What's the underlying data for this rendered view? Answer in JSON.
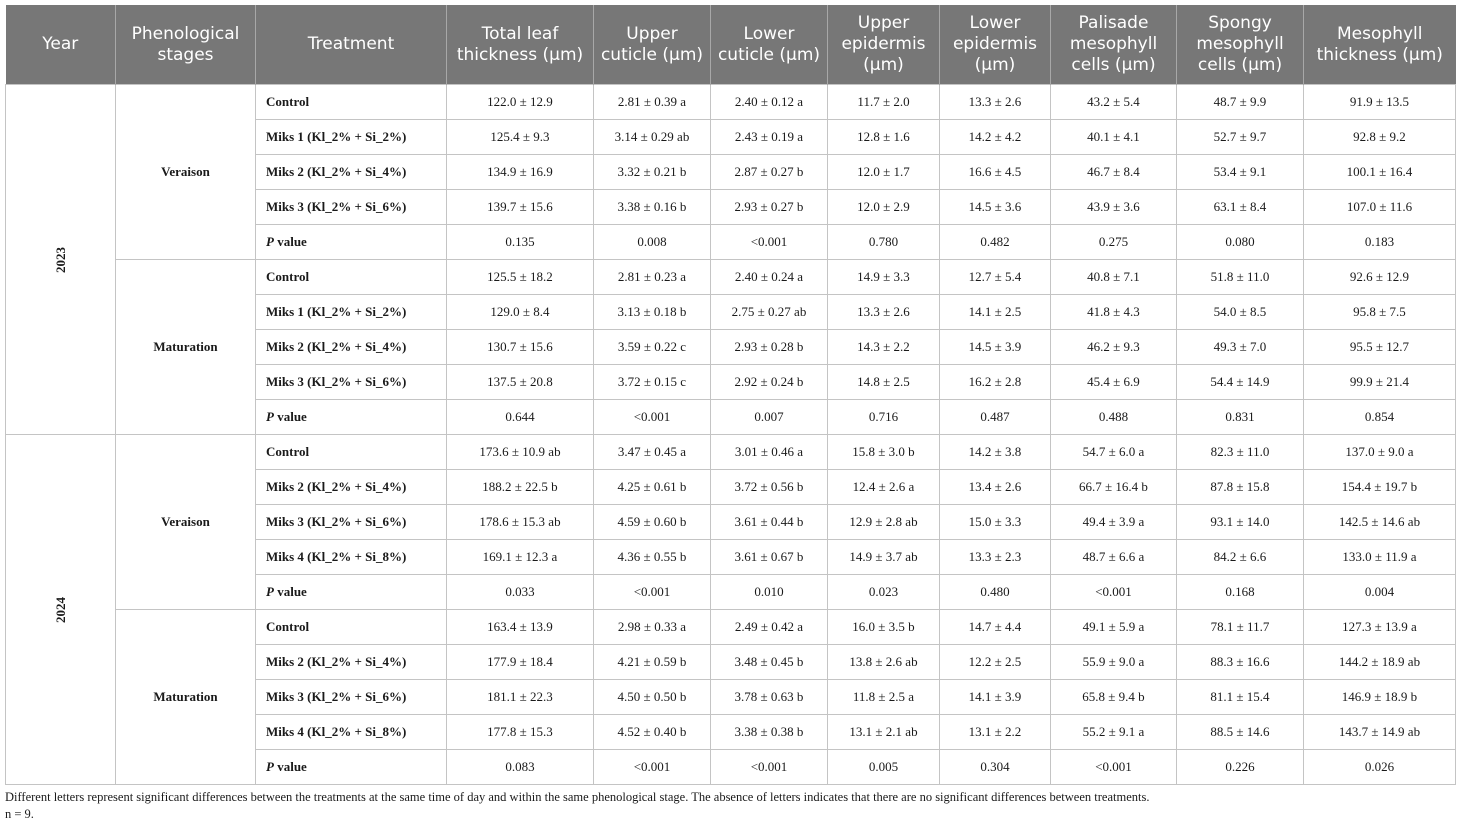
{
  "table": {
    "headers": {
      "year": "Year",
      "stage": "Phenological stages",
      "treatment": "Treatment",
      "total": "Total leaf thickness (µm)",
      "upper_cuticle": "Upper cuticle (µm)",
      "lower_cuticle": "Lower cuticle (µm)",
      "upper_epidermis": "Upper epidermis (µm)",
      "lower_epidermis": "Lower epidermis (µm)",
      "palisade": "Palisade mesophyll cells (µm)",
      "spongy": "Spongy mesophyll cells (µm)",
      "mesophyll": "Mesophyll thickness (µm)"
    },
    "years": [
      {
        "year": "2023",
        "stages": [
          {
            "stage": "Veraison",
            "rows": [
              {
                "treatment": "Control",
                "values": [
                  "122.0 ± 12.9",
                  "2.81 ± 0.39 a",
                  "2.40 ± 0.12 a",
                  "11.7 ± 2.0",
                  "13.3 ± 2.6",
                  "43.2 ± 5.4",
                  "48.7 ± 9.9",
                  "91.9 ± 13.5"
                ]
              },
              {
                "treatment": "Miks 1 (Kl_2% + Si_2%)",
                "values": [
                  "125.4 ± 9.3",
                  "3.14 ± 0.29 ab",
                  "2.43 ± 0.19 a",
                  "12.8 ± 1.6",
                  "14.2 ± 4.2",
                  "40.1 ± 4.1",
                  "52.7 ± 9.7",
                  "92.8 ± 9.2"
                ]
              },
              {
                "treatment": "Miks 2 (Kl_2% + Si_4%)",
                "values": [
                  "134.9 ± 16.9",
                  "3.32 ± 0.21 b",
                  "2.87 ± 0.27 b",
                  "12.0 ± 1.7",
                  "16.6 ± 4.5",
                  "46.7 ± 8.4",
                  "53.4 ± 9.1",
                  "100.1 ± 16.4"
                ]
              },
              {
                "treatment": "Miks 3 (Kl_2% + Si_6%)",
                "values": [
                  "139.7 ± 15.6",
                  "3.38 ± 0.16 b",
                  "2.93 ± 0.27 b",
                  "12.0 ± 2.9",
                  "14.5 ± 3.6",
                  "43.9 ± 3.6",
                  "63.1 ± 8.4",
                  "107.0 ± 11.6"
                ]
              },
              {
                "treatment_p": "P",
                "treatment_rest": " value",
                "values": [
                  "0.135",
                  "0.008",
                  "<0.001",
                  "0.780",
                  "0.482",
                  "0.275",
                  "0.080",
                  "0.183"
                ]
              }
            ]
          },
          {
            "stage": "Maturation",
            "rows": [
              {
                "treatment": "Control",
                "values": [
                  "125.5 ± 18.2",
                  "2.81 ± 0.23 a",
                  "2.40 ± 0.24 a",
                  "14.9 ± 3.3",
                  "12.7 ± 5.4",
                  "40.8 ± 7.1",
                  "51.8 ± 11.0",
                  "92.6 ± 12.9"
                ]
              },
              {
                "treatment": "Miks 1 (Kl_2% + Si_2%)",
                "values": [
                  "129.0 ± 8.4",
                  "3.13 ± 0.18 b",
                  "2.75 ± 0.27 ab",
                  "13.3 ± 2.6",
                  "14.1 ± 2.5",
                  "41.8 ± 4.3",
                  "54.0 ± 8.5",
                  "95.8 ± 7.5"
                ]
              },
              {
                "treatment": "Miks 2 (Kl_2% + Si_4%)",
                "values": [
                  "130.7 ± 15.6",
                  "3.59 ± 0.22 c",
                  "2.93 ± 0.28 b",
                  "14.3 ± 2.2",
                  "14.5 ± 3.9",
                  "46.2 ± 9.3",
                  "49.3 ± 7.0",
                  "95.5 ± 12.7"
                ]
              },
              {
                "treatment": "Miks 3 (Kl_2% + Si_6%)",
                "values": [
                  "137.5 ± 20.8",
                  "3.72 ± 0.15 c",
                  "2.92 ± 0.24 b",
                  "14.8 ± 2.5",
                  "16.2 ± 2.8",
                  "45.4 ± 6.9",
                  "54.4 ± 14.9",
                  "99.9 ± 21.4"
                ]
              },
              {
                "treatment_p": "P",
                "treatment_rest": " value",
                "values": [
                  "0.644",
                  "<0.001",
                  "0.007",
                  "0.716",
                  "0.487",
                  "0.488",
                  "0.831",
                  "0.854"
                ]
              }
            ]
          }
        ]
      },
      {
        "year": "2024",
        "stages": [
          {
            "stage": "Veraison",
            "rows": [
              {
                "treatment": "Control",
                "values": [
                  "173.6 ± 10.9 ab",
                  "3.47 ± 0.45 a",
                  "3.01 ± 0.46 a",
                  "15.8 ± 3.0 b",
                  "14.2 ± 3.8",
                  "54.7 ± 6.0 a",
                  "82.3 ± 11.0",
                  "137.0 ± 9.0 a"
                ]
              },
              {
                "treatment": "Miks 2 (Kl_2% + Si_4%)",
                "values": [
                  "188.2 ± 22.5 b",
                  "4.25 ± 0.61 b",
                  "3.72 ± 0.56 b",
                  "12.4 ± 2.6 a",
                  "13.4 ± 2.6",
                  "66.7 ± 16.4 b",
                  "87.8 ± 15.8",
                  "154.4 ± 19.7 b"
                ]
              },
              {
                "treatment": "Miks 3 (Kl_2% + Si_6%)",
                "values": [
                  "178.6 ± 15.3 ab",
                  "4.59 ± 0.60 b",
                  "3.61 ± 0.44 b",
                  "12.9 ± 2.8 ab",
                  "15.0 ± 3.3",
                  "49.4 ± 3.9 a",
                  "93.1 ± 14.0",
                  "142.5 ± 14.6 ab"
                ]
              },
              {
                "treatment": "Miks 4 (Kl_2% + Si_8%)",
                "values": [
                  "169.1 ± 12.3 a",
                  "4.36 ± 0.55 b",
                  "3.61 ± 0.67 b",
                  "14.9 ± 3.7 ab",
                  "13.3 ± 2.3",
                  "48.7 ± 6.6 a",
                  "84.2 ± 6.6",
                  "133.0 ± 11.9 a"
                ]
              },
              {
                "treatment_p": "P",
                "treatment_rest": " value",
                "values": [
                  "0.033",
                  "<0.001",
                  "0.010",
                  "0.023",
                  "0.480",
                  "<0.001",
                  "0.168",
                  "0.004"
                ]
              }
            ]
          },
          {
            "stage": "Maturation",
            "rows": [
              {
                "treatment": "Control",
                "values": [
                  "163.4 ± 13.9",
                  "2.98 ± 0.33 a",
                  "2.49 ± 0.42 a",
                  "16.0 ± 3.5 b",
                  "14.7 ± 4.4",
                  "49.1 ± 5.9 a",
                  "78.1 ± 11.7",
                  "127.3 ± 13.9 a"
                ]
              },
              {
                "treatment": "Miks 2 (Kl_2% + Si_4%)",
                "values": [
                  "177.9 ± 18.4",
                  "4.21 ± 0.59 b",
                  "3.48 ± 0.45 b",
                  "13.8 ± 2.6 ab",
                  "12.2 ± 2.5",
                  "55.9 ± 9.0 a",
                  "88.3 ± 16.6",
                  "144.2 ± 18.9 ab"
                ]
              },
              {
                "treatment": "Miks 3 (Kl_2% + Si_6%)",
                "values": [
                  "181.1 ± 22.3",
                  "4.50 ± 0.50 b",
                  "3.78 ± 0.63 b",
                  "11.8 ± 2.5 a",
                  "14.1 ± 3.9",
                  "65.8 ± 9.4 b",
                  "81.1 ± 15.4",
                  "146.9 ± 18.9 b"
                ]
              },
              {
                "treatment": "Miks 4 (Kl_2% + Si_8%)",
                "values": [
                  "177.8 ± 15.3",
                  "4.52 ± 0.40 b",
                  "3.38 ± 0.38 b",
                  "13.1 ± 2.1 ab",
                  "13.1 ± 2.2",
                  "55.2 ± 9.1 a",
                  "88.5 ± 14.6",
                  "143.7 ± 14.9 ab"
                ]
              },
              {
                "treatment_p": "P",
                "treatment_rest": " value",
                "values": [
                  "0.083",
                  "<0.001",
                  "<0.001",
                  "0.005",
                  "0.304",
                  "<0.001",
                  "0.226",
                  "0.026"
                ]
              }
            ]
          }
        ]
      }
    ]
  },
  "footnotes": {
    "line1": "Different letters represent significant differences between the treatments at the same time of day and within the same phenological stage. The absence of letters indicates that there are no significant differences between treatments.",
    "line2": "n = 9."
  }
}
